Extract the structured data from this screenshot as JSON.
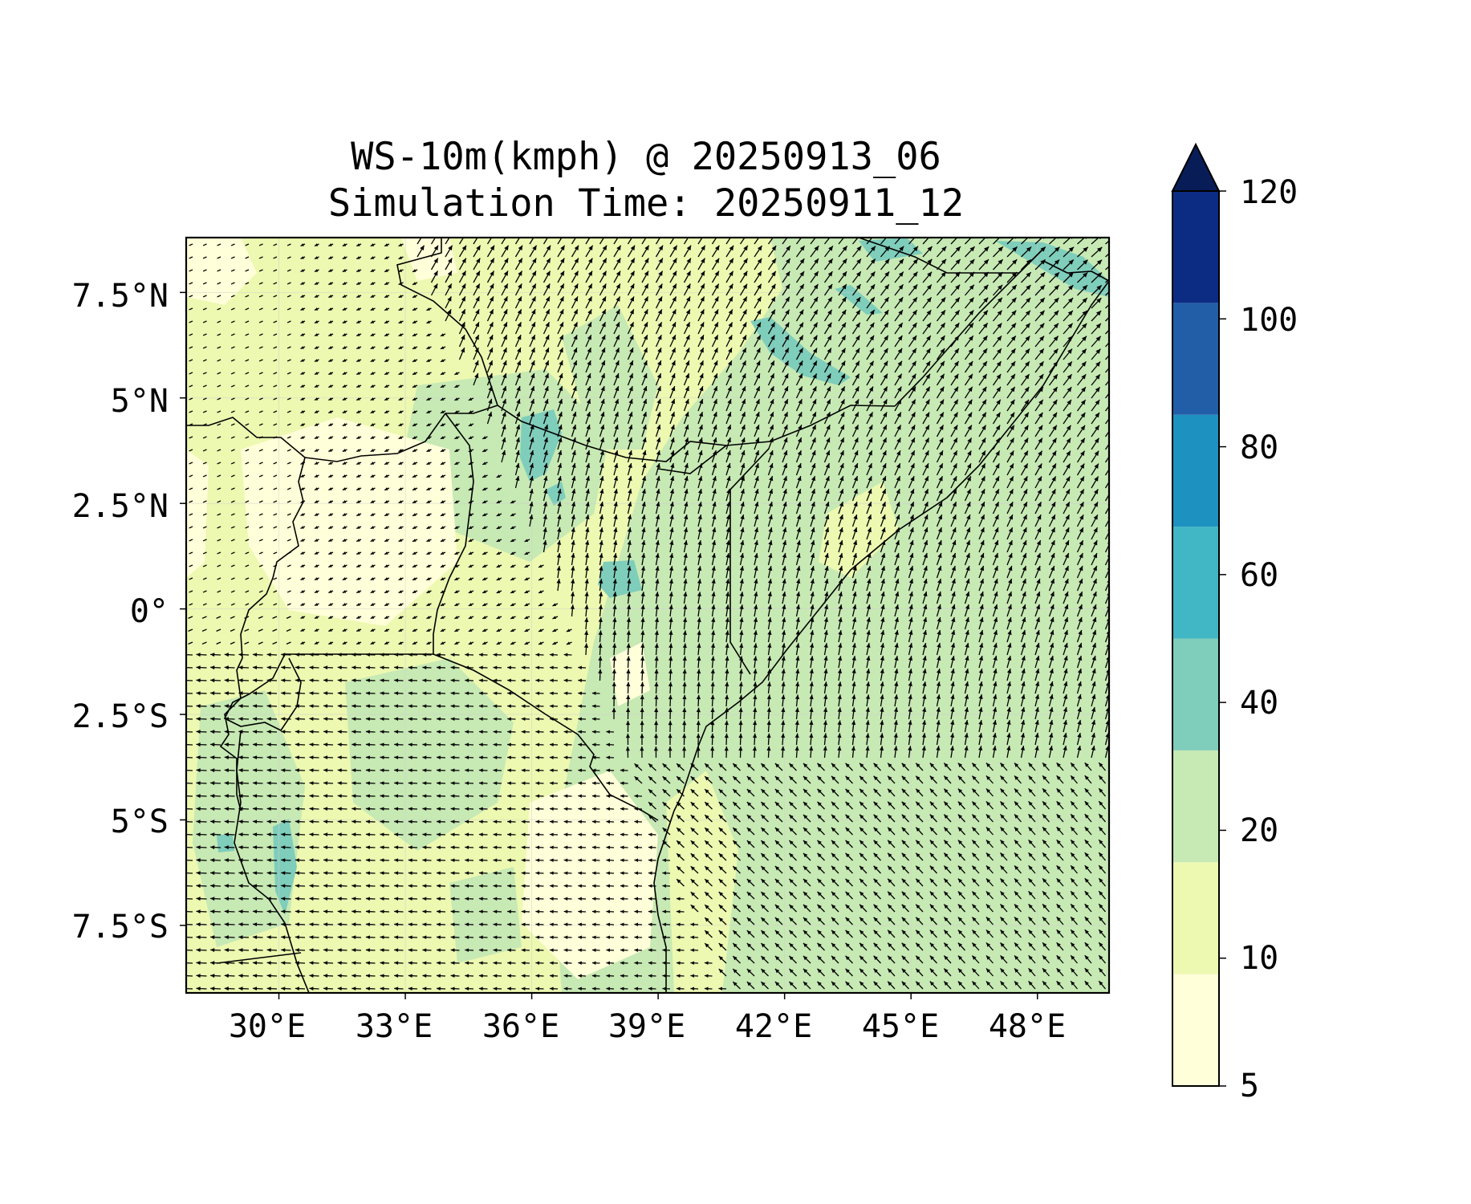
{
  "map": {
    "title_line1": "WS-10m(kmph) @ 20250913_06",
    "title_line2": "Simulation Time: 20250911_12",
    "lon_ticks": [
      "30°E",
      "33°E",
      "36°E",
      "39°E",
      "42°E",
      "45°E",
      "48°E"
    ],
    "lat_ticks": [
      "7.5°N",
      "5°N",
      "2.5°N",
      "0°",
      "2.5°S",
      "5°S",
      "7.5°S"
    ],
    "extent": {
      "lon_min": 27.8,
      "lon_max": 49.7,
      "lat_min": -9.1,
      "lat_max": 8.8
    },
    "colors": {
      "background": "#ffffff",
      "coast": "#000000",
      "arrows": "#000000"
    }
  },
  "colorbar": {
    "levels": [
      "5",
      "10",
      "20",
      "40",
      "60",
      "80",
      "100",
      "120"
    ],
    "colors": [
      "#ffffd9",
      "#edf8b1",
      "#c7e9b4",
      "#7fcdbb",
      "#41b6c4",
      "#1d91c0",
      "#225ea8",
      "#0c2c84"
    ],
    "extend_color": "#081d58",
    "extend": "max"
  },
  "chart_data": {
    "type": "heatmap",
    "variable": "WS-10m(kmph)",
    "valid_time": "20250913_06",
    "simulation_time": "20250911_12",
    "levels": [
      5,
      10,
      20,
      40,
      60,
      80,
      100,
      120
    ],
    "features": {
      "low_speed_5_10": [
        {
          "lon": 29.5,
          "lat": 1.5
        },
        {
          "lon": 32.0,
          "lat": 2.5
        },
        {
          "lon": 31.5,
          "lat": 0.0
        },
        {
          "lon": 38.0,
          "lat": -6.5
        },
        {
          "lon": 36.5,
          "lat": -8.0
        },
        {
          "lon": 29.0,
          "lat": 8.0
        }
      ],
      "moderate_20_40": [
        {
          "lon": 44.5,
          "lat": 0.0
        },
        {
          "lon": 43.5,
          "lat": 6.5
        },
        {
          "lon": 33.0,
          "lat": -5.5
        },
        {
          "lon": 38.5,
          "lat": 3.0
        },
        {
          "lon": 30.0,
          "lat": -6.5
        }
      ],
      "strong_40_60": [
        {
          "lon": 42.8,
          "lat": 6.0
        },
        {
          "lon": 37.0,
          "lat": 4.2
        },
        {
          "lon": 38.5,
          "lat": 0.8
        },
        {
          "lon": 48.5,
          "lat": 8.2
        },
        {
          "lon": 44.5,
          "lat": 8.4
        },
        {
          "lon": 30.0,
          "lat": -6.0
        }
      ]
    }
  }
}
